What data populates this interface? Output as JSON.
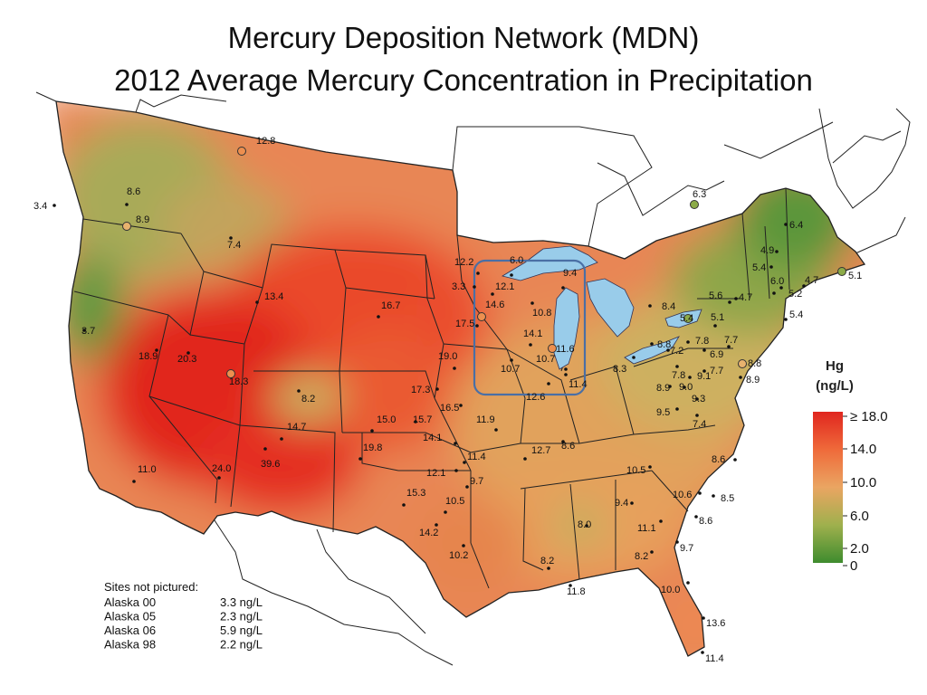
{
  "title_line1": "Mercury Deposition Network (MDN)",
  "title_line2": "2012 Average Mercury Concentration in Precipitation",
  "legend": {
    "title_line1": "Hg",
    "title_line2": "(ng/L)",
    "ticks": [
      "≥ 18.0",
      "14.0",
      "10.0",
      "6.0",
      "2.0",
      "0"
    ],
    "colors": [
      "#e0261f",
      "#ef6a3a",
      "#eaa562",
      "#9fb04d",
      "#3e8c2e"
    ]
  },
  "sites_not_pictured": {
    "heading": "Sites not pictured:",
    "rows": [
      {
        "site": "Alaska 00",
        "value": "3.3 ng/L"
      },
      {
        "site": "Alaska 05",
        "value": "2.3 ng/L"
      },
      {
        "site": "Alaska 06",
        "value": "5.9 ng/L"
      },
      {
        "site": "Alaska 98",
        "value": "2.2 ng/L"
      }
    ]
  },
  "sites": [
    {
      "label": "12.8",
      "value": 12.8
    },
    {
      "label": "6.3",
      "value": 6.3
    },
    {
      "label": "8.6",
      "value": 8.6
    },
    {
      "label": "3.4",
      "value": 3.4
    },
    {
      "label": "8.9",
      "value": 8.9
    },
    {
      "label": "7.4",
      "value": 7.4
    },
    {
      "label": "3.7",
      "value": 3.7
    },
    {
      "label": "13.4",
      "value": 13.4
    },
    {
      "label": "18.9",
      "value": 18.9
    },
    {
      "label": "20.3",
      "value": 20.3
    },
    {
      "label": "18.3",
      "value": 18.3
    },
    {
      "label": "8.2",
      "value": 8.2
    },
    {
      "label": "14.7",
      "value": 14.7
    },
    {
      "label": "39.6",
      "value": 39.6
    },
    {
      "label": "24.0",
      "value": 24.0
    },
    {
      "label": "11.0",
      "value": 11.0
    },
    {
      "label": "16.7",
      "value": 16.7
    },
    {
      "label": "17.5",
      "value": 17.5
    },
    {
      "label": "19.0",
      "value": 19.0
    },
    {
      "label": "17.3",
      "value": 17.3
    },
    {
      "label": "16.5",
      "value": 16.5
    },
    {
      "label": "15.0",
      "value": 15.0
    },
    {
      "label": "15.7",
      "value": 15.7
    },
    {
      "label": "14.1",
      "value": 14.1
    },
    {
      "label": "19.8",
      "value": 19.8
    },
    {
      "label": "11.4",
      "value": 11.4
    },
    {
      "label": "12.1",
      "value": 12.1
    },
    {
      "label": "11.9",
      "value": 11.9
    },
    {
      "label": "9.7",
      "value": 9.7
    },
    {
      "label": "15.3",
      "value": 15.3
    },
    {
      "label": "10.5",
      "value": 10.5
    },
    {
      "label": "14.2",
      "value": 14.2
    },
    {
      "label": "10.2",
      "value": 10.2
    },
    {
      "label": "12.7",
      "value": 12.7
    },
    {
      "label": "10.7",
      "value": 10.7
    },
    {
      "label": "3.3",
      "value": 3.3
    },
    {
      "label": "12.1",
      "value": 12.1
    },
    {
      "label": "14.6",
      "value": 14.6
    },
    {
      "label": "10.8",
      "value": 10.8
    },
    {
      "label": "14.1",
      "value": 14.1
    },
    {
      "label": "11.6",
      "value": 11.6
    },
    {
      "label": "10.7",
      "value": 10.7
    },
    {
      "label": "9.4",
      "value": 9.4
    },
    {
      "label": "11.4",
      "value": 11.4
    },
    {
      "label": "12.6",
      "value": 12.6
    },
    {
      "label": "8.6",
      "value": 8.6
    },
    {
      "label": "10.5",
      "value": 10.5
    },
    {
      "label": "9.4",
      "value": 9.4
    },
    {
      "label": "8.0",
      "value": 8.0
    },
    {
      "label": "11.1",
      "value": 11.1
    },
    {
      "label": "10.6",
      "value": 10.6
    },
    {
      "label": "8.5",
      "value": 8.5
    },
    {
      "label": "8.6",
      "value": 8.6
    },
    {
      "label": "9.7",
      "value": 9.7
    },
    {
      "label": "8.2",
      "value": 8.2
    },
    {
      "label": "8.2",
      "value": 8.2
    },
    {
      "label": "11.8",
      "value": 11.8
    },
    {
      "label": "10.0",
      "value": 10.0
    },
    {
      "label": "13.6",
      "value": 13.6
    },
    {
      "label": "11.4",
      "value": 11.4
    },
    {
      "label": "8.4",
      "value": 8.4
    },
    {
      "label": "8.3",
      "value": 8.3
    },
    {
      "label": "8.8",
      "value": 8.8
    },
    {
      "label": "7.2",
      "value": 7.2
    },
    {
      "label": "7.8",
      "value": 7.8
    },
    {
      "label": "6.9",
      "value": 6.9
    },
    {
      "label": "7.8",
      "value": 7.8
    },
    {
      "label": "9.1",
      "value": 9.1
    },
    {
      "label": "7.7",
      "value": 7.7
    },
    {
      "label": "8.9",
      "value": 8.9
    },
    {
      "label": "9.0",
      "value": 9.0
    },
    {
      "label": "9.3",
      "value": 9.3
    },
    {
      "label": "9.5",
      "value": 9.5
    },
    {
      "label": "7.4",
      "value": 7.4
    },
    {
      "label": "8.6",
      "value": 8.6
    },
    {
      "label": "8.8",
      "value": 8.8
    },
    {
      "label": "8.9",
      "value": 8.9
    },
    {
      "label": "7.7",
      "value": 7.7
    },
    {
      "label": "5.1",
      "value": 5.1
    },
    {
      "label": "5.6",
      "value": 5.6
    },
    {
      "label": "4.7",
      "value": 4.7
    },
    {
      "label": "6.0",
      "value": 6.0
    },
    {
      "label": "5.2",
      "value": 5.2
    },
    {
      "label": "5.4",
      "value": 5.4
    },
    {
      "label": "4.9",
      "value": 4.9
    },
    {
      "label": "5.4",
      "value": 5.4
    },
    {
      "label": "6.4",
      "value": 6.4
    },
    {
      "label": "4.7",
      "value": 4.7
    },
    {
      "label": "5.1",
      "value": 5.1
    },
    {
      "label": "5.4",
      "value": 5.4
    },
    {
      "label": "6.0",
      "value": 6.0
    },
    {
      "label": "12.2",
      "value": 12.2
    },
    {
      "label": "10.7",
      "value": 10.7
    }
  ]
}
